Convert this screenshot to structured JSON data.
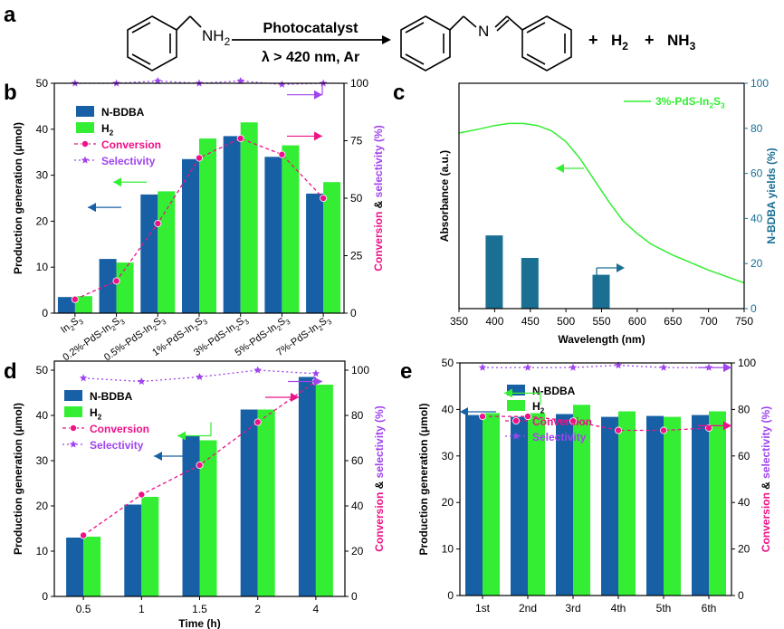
{
  "colors": {
    "blue": "#1760a5",
    "green": "#33ee33",
    "magenta": "#ee1188",
    "purple": "#a044ee",
    "teal": "#1a6f93",
    "ink": "#000000"
  },
  "panels": {
    "a": {
      "letter": "a"
    },
    "b": {
      "letter": "b"
    },
    "c": {
      "letter": "c"
    },
    "d": {
      "letter": "d"
    },
    "e": {
      "letter": "e"
    }
  },
  "scheme": {
    "reactant_amine": "NH",
    "reactant_amine_sub": "2",
    "catalyst": "Photocatalyst",
    "conditions": "λ > 420 nm, Ar",
    "imine_n": "N",
    "plus1": "+",
    "h2": "H",
    "h2_sub": "2",
    "plus2": "+",
    "nh3": "NH",
    "nh3_sub": "3"
  },
  "chart_data": [
    {
      "panel": "b",
      "type": "bar",
      "categories": [
        "In2S3",
        "0.2%-PdS-In2S3",
        "0.5%-PdS-In2S3",
        "1%-PdS-In2S3",
        "3%-PdS-In2S3",
        "5%-PdS-In2S3",
        "7%-PdS-In2S3"
      ],
      "series": [
        {
          "name": "N-BDBA",
          "values": [
            3.5,
            11.8,
            25.8,
            33.5,
            38.5,
            34.0,
            26.0
          ]
        },
        {
          "name": "H2",
          "values": [
            3.7,
            11.0,
            26.5,
            38.0,
            41.5,
            36.5,
            28.5
          ]
        }
      ],
      "line_series": [
        {
          "name": "Conversion",
          "values": [
            6,
            14,
            39,
            67.5,
            76,
            69,
            50
          ]
        },
        {
          "name": "Selectivity",
          "values": [
            100,
            100,
            101,
            100,
            101,
            99.5,
            100
          ]
        }
      ],
      "ylabel": "Production generation (μmol)",
      "ylabel_right": "Conversion & selectivity (%)",
      "ylim": [
        0,
        50
      ],
      "yticks": [
        "0",
        "10",
        "20",
        "30",
        "40",
        "50"
      ],
      "ylim_right": [
        0,
        100
      ],
      "yticks_right": [
        "0",
        "25",
        "50",
        "75",
        "100"
      ],
      "legend": [
        {
          "label": "N-BDBA"
        },
        {
          "label": "H2"
        },
        {
          "label": "Conversion"
        },
        {
          "label": "Selectivity"
        }
      ]
    },
    {
      "panel": "c",
      "type": "line",
      "series": [
        {
          "name": "3%-PdS-In2S3",
          "kind": "absorbance",
          "x": [
            350,
            380,
            400,
            420,
            440,
            460,
            480,
            500,
            520,
            540,
            560,
            580,
            600,
            620,
            650,
            700,
            750
          ],
          "y": [
            0.82,
            0.84,
            0.855,
            0.865,
            0.865,
            0.855,
            0.83,
            0.78,
            0.7,
            0.6,
            0.5,
            0.41,
            0.35,
            0.3,
            0.25,
            0.18,
            0.12
          ]
        }
      ],
      "bars": {
        "name": "N-BDBA yield",
        "x": [
          400,
          450,
          550
        ],
        "values": [
          32.5,
          22.5,
          15
        ]
      },
      "xlabel": "Wavelength (nm)",
      "ylabel": "Absorbance (a.u.)",
      "ylabel_right": "N-BDBA yields (%)",
      "xlim": [
        350,
        750
      ],
      "xticks": [
        "350",
        "400",
        "450",
        "500",
        "550",
        "600",
        "650",
        "700",
        "750"
      ],
      "ylim_right": [
        0,
        100
      ],
      "yticks_right": [
        "0",
        "20",
        "40",
        "60",
        "80",
        "100"
      ],
      "legend": [
        {
          "label": "3%-PdS-In2S3"
        }
      ]
    },
    {
      "panel": "d",
      "type": "bar",
      "categories": [
        "0.5",
        "1",
        "1.5",
        "2",
        "4"
      ],
      "series": [
        {
          "name": "N-BDBA",
          "values": [
            13,
            20.3,
            35.5,
            41.3,
            48.5
          ]
        },
        {
          "name": "H2",
          "values": [
            13.2,
            22,
            34.5,
            41.3,
            46.8
          ]
        }
      ],
      "line_series": [
        {
          "name": "Conversion",
          "values": [
            27,
            45,
            58,
            77,
            95
          ]
        },
        {
          "name": "Selectivity",
          "values": [
            96.5,
            95,
            97,
            100,
            98.5
          ]
        }
      ],
      "xlabel": "Time (h)",
      "ylabel": "Production generation (μmol)",
      "ylabel_right": "Conversion & selectivity (%)",
      "ylim": [
        0,
        52
      ],
      "yticks": [
        "0",
        "10",
        "20",
        "30",
        "40",
        "50"
      ],
      "ylim_right": [
        0,
        104
      ],
      "yticks_right": [
        "0",
        "20",
        "40",
        "60",
        "80",
        "100"
      ],
      "legend": [
        {
          "label": "N-BDBA"
        },
        {
          "label": "H2"
        },
        {
          "label": "Conversion"
        },
        {
          "label": "Selectivity"
        }
      ]
    },
    {
      "panel": "e",
      "type": "bar",
      "categories": [
        "1st",
        "2nd",
        "3rd",
        "4th",
        "5th",
        "6th"
      ],
      "series": [
        {
          "name": "N-BDBA",
          "values": [
            38.8,
            38.4,
            39,
            38.4,
            38.6,
            38.8
          ]
        },
        {
          "name": "H2",
          "values": [
            39.2,
            39.2,
            41,
            39.6,
            38.4,
            39.6
          ]
        }
      ],
      "line_series": [
        {
          "name": "Conversion",
          "values": [
            77,
            77,
            75,
            71,
            71,
            72
          ]
        },
        {
          "name": "Selectivity",
          "values": [
            98,
            98,
            98,
            99,
            98,
            98
          ]
        }
      ],
      "ylabel": "Production generation (μmol)",
      "ylabel_right": "Conversion & selectivity (%)",
      "ylim": [
        0,
        50
      ],
      "yticks": [
        "0",
        "10",
        "20",
        "30",
        "40",
        "50"
      ],
      "ylim_right": [
        0,
        100
      ],
      "yticks_right": [
        "0",
        "20",
        "40",
        "60",
        "80",
        "100"
      ],
      "legend": [
        {
          "label": "N-BDBA"
        },
        {
          "label": "H2"
        },
        {
          "label": "Conversion"
        },
        {
          "label": "Selectivity"
        }
      ]
    }
  ]
}
